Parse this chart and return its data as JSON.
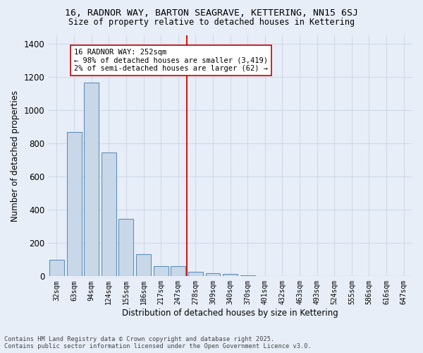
{
  "title": "16, RADNOR WAY, BARTON SEAGRAVE, KETTERING, NN15 6SJ",
  "subtitle": "Size of property relative to detached houses in Kettering",
  "xlabel": "Distribution of detached houses by size in Kettering",
  "ylabel": "Number of detached properties",
  "bar_color": "#c8d8e8",
  "bar_edge_color": "#6090b8",
  "categories": [
    "32sqm",
    "63sqm",
    "94sqm",
    "124sqm",
    "155sqm",
    "186sqm",
    "217sqm",
    "247sqm",
    "278sqm",
    "309sqm",
    "340sqm",
    "370sqm",
    "401sqm",
    "432sqm",
    "463sqm",
    "493sqm",
    "524sqm",
    "555sqm",
    "586sqm",
    "616sqm",
    "647sqm"
  ],
  "values": [
    100,
    870,
    1165,
    745,
    345,
    135,
    60,
    60,
    28,
    18,
    13,
    5,
    0,
    0,
    0,
    0,
    0,
    0,
    0,
    0,
    0
  ],
  "ylim": [
    0,
    1450
  ],
  "yticks": [
    0,
    200,
    400,
    600,
    800,
    1000,
    1200,
    1400
  ],
  "vline_x": 7.5,
  "vline_color": "#cc0000",
  "annotation_text": "16 RADNOR WAY: 252sqm\n← 98% of detached houses are smaller (3,419)\n2% of semi-detached houses are larger (62) →",
  "annotation_box_color": "#ffffff",
  "annotation_box_edge": "#cc0000",
  "footer": "Contains HM Land Registry data © Crown copyright and database right 2025.\nContains public sector information licensed under the Open Government Licence v3.0.",
  "bg_color": "#e8eef8",
  "grid_color": "#d0d8e8"
}
